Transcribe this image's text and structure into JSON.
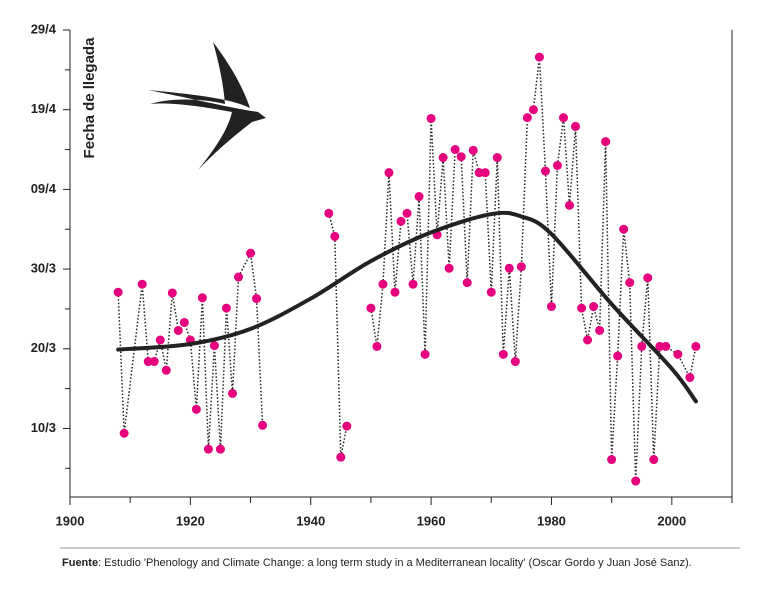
{
  "chart_data": {
    "type": "line",
    "ylabel": "Fecha de llegada",
    "source_label": "Fuente",
    "source_text": ": Estudio 'Phenology and Climate Change: a long term study in a Mediterranean locality' (Oscar Gordo y Juan José Sanz).",
    "xlim": [
      1900,
      2010
    ],
    "xticks": [
      1900,
      1920,
      1940,
      1960,
      1980,
      2000
    ],
    "xminorticks": [
      1910,
      1930,
      1950,
      1970,
      1990,
      2010
    ],
    "ylim": [
      60.4,
      119
    ],
    "yticks": [
      {
        "value": 69,
        "label": "10/3"
      },
      {
        "value": 79,
        "label": "20/3"
      },
      {
        "value": 89,
        "label": "30/3"
      },
      {
        "value": 99,
        "label": "09/4"
      },
      {
        "value": 109,
        "label": "19/4"
      },
      {
        "value": 119,
        "label": "29/4"
      }
    ],
    "yminorticks": [
      64,
      74,
      84,
      94,
      104,
      114
    ],
    "series": [
      {
        "color": "#e6007e",
        "style": "dotted",
        "x": [
          1908,
          1909,
          1912,
          1913,
          1914,
          1915,
          1916,
          1917,
          1918,
          1919,
          1920,
          1921,
          1922,
          1923,
          1924,
          1925,
          1926,
          1927,
          1928,
          1930,
          1931,
          1932,
          1933,
          1943,
          1944,
          1945,
          1946,
          1948,
          1950,
          1951,
          1952,
          1953,
          1954,
          1955,
          1956,
          1957,
          1958,
          1959,
          1960,
          1961,
          1962,
          1963,
          1964,
          1965,
          1966,
          1967,
          1968,
          1969,
          1970,
          1971,
          1972,
          1973,
          1974,
          1975,
          1976,
          1977,
          1978,
          1979,
          1980,
          1981,
          1982,
          1983,
          1984,
          1985,
          1986,
          1987,
          1988,
          1989,
          1990,
          1991,
          1992,
          1993,
          1994,
          1995,
          1996,
          1997,
          1998,
          1999,
          2001,
          2003,
          2004
        ],
        "values": [
          86.1,
          68.4,
          87.1,
          77.4,
          77.4,
          80.1,
          76.3,
          86,
          81.3,
          82.3,
          80.1,
          71.4,
          85.4,
          66.4,
          79.4,
          66.4,
          84.1,
          73.4,
          88,
          91,
          85.3,
          69.4,
          null,
          96,
          93.1,
          65.4,
          69.3,
          null,
          84.1,
          79.3,
          87.1,
          101.1,
          86.1,
          95,
          96,
          87.1,
          98.1,
          78.3,
          107.9,
          93.3,
          103,
          89.1,
          104,
          103.1,
          87.3,
          103.9,
          101.1,
          101.1,
          86.1,
          103,
          78.3,
          89.1,
          77.4,
          89.3,
          108,
          109,
          115.6,
          101.3,
          84.3,
          102,
          108,
          97,
          106.9,
          84.1,
          80.1,
          84.3,
          81.3,
          105,
          65.1,
          78.1,
          94,
          87.3,
          62.4,
          79.3,
          87.9,
          65.1,
          79.3,
          79.3,
          78.3,
          75.4,
          79.3
        ]
      },
      {
        "color": "#222222",
        "style": "trend",
        "x": [
          1908,
          1920,
          1930,
          1940,
          1950,
          1960,
          1970,
          1975,
          1980,
          1990,
          2000,
          2004
        ],
        "values": [
          78.9,
          79.6,
          81.5,
          85.3,
          90,
          93.6,
          95.9,
          95.6,
          93.4,
          84.6,
          76.5,
          72.4
        ]
      }
    ]
  }
}
